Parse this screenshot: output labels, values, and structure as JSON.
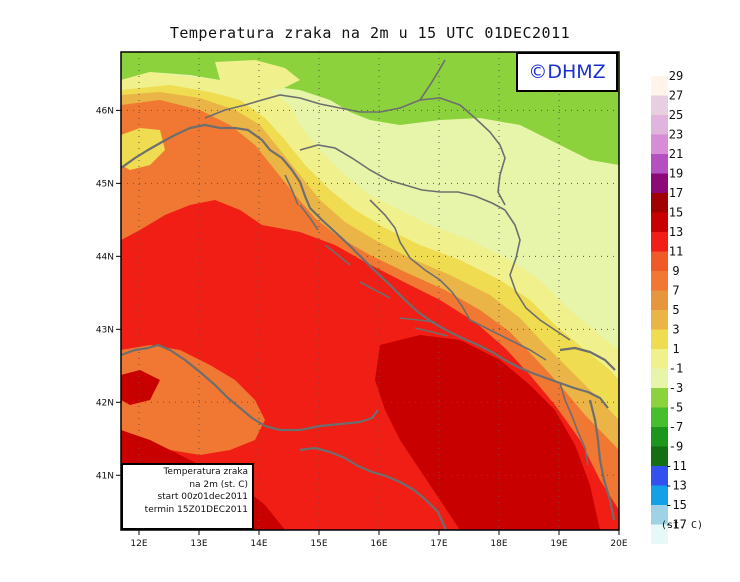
{
  "title": "Temperatura zraka na 2m u 15 UTC 01DEC2011",
  "watermark": "©DHMZ",
  "info_box": {
    "line1": "Temperatura zraka",
    "line2": "na 2m (st. C)",
    "line3": "start 00z01dec2011",
    "line4": "termin 15Z01DEC2011"
  },
  "map": {
    "lon_ticks": [
      "12E",
      "13E",
      "14E",
      "15E",
      "16E",
      "17E",
      "18E",
      "19E",
      "20E"
    ],
    "lat_ticks": [
      "46N",
      "45N",
      "44N",
      "43N",
      "42N",
      "41N"
    ]
  },
  "colorbar": {
    "unit": "(st. C)",
    "levels": [
      "29",
      "27",
      "25",
      "23",
      "21",
      "19",
      "17",
      "15",
      "13",
      "11",
      "9",
      "7",
      "5",
      "3",
      "1",
      "-1",
      "-3",
      "-5",
      "-7",
      "-9",
      "-11",
      "-13",
      "-15",
      "-17"
    ],
    "colors": [
      "#fff5ea",
      "#e8cfe0",
      "#e0b4dc",
      "#d88cd8",
      "#b450c0",
      "#8c0a78",
      "#a00000",
      "#c80000",
      "#f01e14",
      "#f05a28",
      "#f07832",
      "#e6963c",
      "#eab446",
      "#f0dc50",
      "#f0f08c",
      "#e6f5aa",
      "#8cd23c",
      "#46be2d",
      "#1e961e",
      "#146e14",
      "#3250f0",
      "#14a0e6",
      "#a0d2e6",
      "#e6f8f8"
    ]
  },
  "zone_colors": {
    "green": "#8cd23c",
    "light_green": "#e6f5aa",
    "yellow_light": "#f0f08c",
    "yellow": "#f0dc50",
    "orange_light": "#eab446",
    "orange": "#f07832",
    "red": "#f01e14",
    "dark_red": "#c80000",
    "coast": "#6e6e6e"
  }
}
